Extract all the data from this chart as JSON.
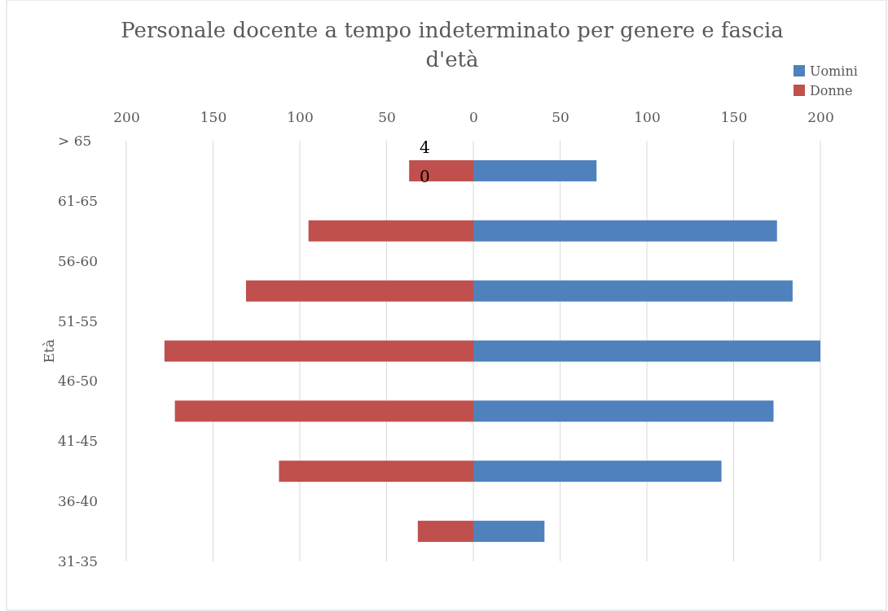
{
  "chart_data": {
    "type": "bar",
    "orientation": "horizontal",
    "stacked": true,
    "title": "Personale docente a tempo indeterminato per genere e fascia d'età",
    "ylabel": "Età",
    "categories": [
      "> 65",
      "61-65",
      "56-60",
      "51-55",
      "46-50",
      "41-45",
      "36-40",
      "31-35"
    ],
    "series": [
      {
        "name": "Uomini",
        "color": "#4f81bd",
        "values": [
          71,
          175,
          184,
          200,
          173,
          143,
          41,
          null
        ]
      },
      {
        "name": "Donne",
        "color": "#c0504d",
        "values": [
          -37,
          -95,
          -131,
          -178,
          -172,
          -112,
          -32,
          null
        ]
      }
    ],
    "xlim": [
      -200,
      200
    ],
    "xticks": [
      {
        "value": -200,
        "label": "200"
      },
      {
        "value": -150,
        "label": "150"
      },
      {
        "value": -100,
        "label": "100"
      },
      {
        "value": -50,
        "label": "50"
      },
      0,
      50,
      100,
      150,
      200
    ],
    "grid": "x",
    "legend": "top right",
    "annotations": [
      "40"
    ]
  }
}
